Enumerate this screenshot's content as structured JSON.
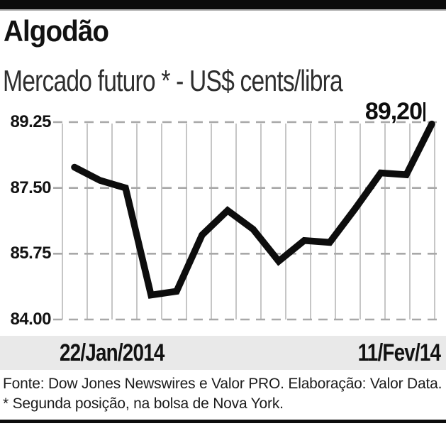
{
  "header": {
    "title": "Algodão",
    "subtitle": "Mercado futuro * - US$ cents/libra"
  },
  "chart_data": {
    "type": "line",
    "title": "Algodão",
    "subtitle": "Mercado futuro * - US$ cents/libra",
    "unit": "US$ cents/libra",
    "series": [
      {
        "name": "Algodão",
        "values": [
          88.05,
          87.7,
          87.5,
          84.65,
          84.75,
          86.25,
          86.9,
          86.4,
          85.55,
          86.1,
          86.05,
          86.95,
          87.9,
          87.85,
          89.2
        ]
      }
    ],
    "x_start_label": "22/Jan/2014",
    "x_end_label": "11/Fev/14",
    "y_ticks": [
      "89.25",
      "87.50",
      "85.75",
      "84.00"
    ],
    "ylim": [
      84.0,
      89.25
    ],
    "last_value_label": "89,20",
    "legend": "none",
    "gridlines": {
      "vertical_count": 16,
      "vertical_style": "solid",
      "horizontal_style": "dashed"
    }
  },
  "footer": {
    "source_text": "Fonte: Dow Jones Newswires e Valor PRO. Elaboração: Valor Data. * Segunda posição, na bolsa de Nova York."
  },
  "colors": {
    "line": "#0d0d0d",
    "vertical_gridline": "#c6c6c6",
    "dashed_gridline": "#a8a8a8",
    "band_bg": "#e9e9e9",
    "border_bar": "#0c0c0c",
    "text": "#161616"
  }
}
